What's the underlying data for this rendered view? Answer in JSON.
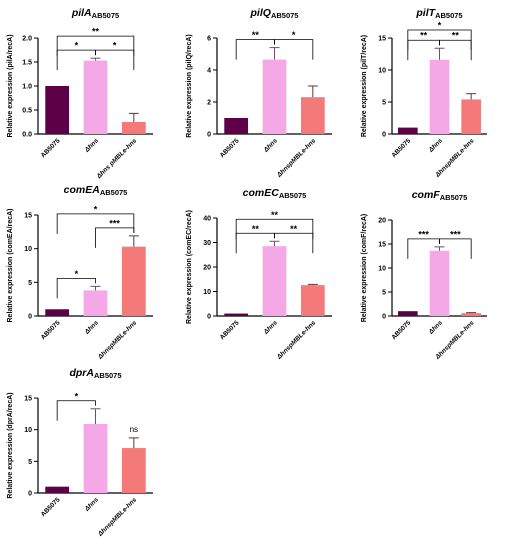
{
  "colors": {
    "AB5075": "#5c0047",
    "hns": "#f4a9e6",
    "complement": "#f47a7a"
  },
  "chart_data": [
    {
      "type": "bar",
      "title": "pilA",
      "subtitle": "AB5075",
      "ylabel": "Relative expression (pilA/recA)",
      "ylim": [
        0,
        2
      ],
      "yticks": [
        "0.0",
        "0.5",
        "1.0",
        "1.5",
        "2.0"
      ],
      "categories": [
        "AB5075",
        "Δhns",
        "Δhns pMBLe-hns"
      ],
      "values": [
        1.0,
        1.53,
        0.25
      ],
      "errors": [
        0,
        0.05,
        0.18
      ],
      "significance": [
        {
          "from": 0,
          "to": 1,
          "label": "*"
        },
        {
          "from": 1,
          "to": 2,
          "label": "*"
        },
        {
          "from": 0,
          "to": 2,
          "label": "**"
        }
      ]
    },
    {
      "type": "bar",
      "title": "pilQ",
      "subtitle": "AB5075",
      "ylabel": "Relative expression (pilQ/recA)",
      "ylim": [
        0,
        6
      ],
      "yticks": [
        "0",
        "2",
        "4",
        "6"
      ],
      "categories": [
        "AB5075",
        "Δhns",
        "ΔhnspMBLe-hns"
      ],
      "values": [
        1.0,
        4.65,
        2.3
      ],
      "errors": [
        0,
        0.75,
        0.7
      ],
      "significance": [
        {
          "from": 0,
          "to": 1,
          "label": "**"
        },
        {
          "from": 1,
          "to": 2,
          "label": "*"
        }
      ]
    },
    {
      "type": "bar",
      "title": "pilT",
      "subtitle": "AB5075",
      "ylabel": "Relative expression (pilT/recA)",
      "ylim": [
        0,
        15
      ],
      "yticks": [
        "0",
        "5",
        "10",
        "15"
      ],
      "categories": [
        "AB5075",
        "Δhns",
        "ΔhnspMBLe-hns"
      ],
      "values": [
        1.0,
        11.6,
        5.4
      ],
      "errors": [
        0,
        1.8,
        0.9
      ],
      "significance": [
        {
          "from": 0,
          "to": 1,
          "label": "**"
        },
        {
          "from": 1,
          "to": 2,
          "label": "**"
        },
        {
          "from": 0,
          "to": 2,
          "label": "*"
        }
      ]
    },
    {
      "type": "bar",
      "title": "comEA",
      "subtitle": "AB5075",
      "ylabel": "Relative expression (comEA/recA)",
      "ylim": [
        0,
        15
      ],
      "yticks": [
        "0",
        "5",
        "10",
        "15"
      ],
      "categories": [
        "AB5075",
        "Δhns",
        "ΔhnspMBLe-hns"
      ],
      "values": [
        1.0,
        3.8,
        10.3
      ],
      "errors": [
        0,
        0.6,
        1.6
      ],
      "significance": [
        {
          "from": 0,
          "to": 1,
          "label": "*"
        },
        {
          "from": 0,
          "to": 2,
          "label": "*"
        },
        {
          "from": 1,
          "to": 2,
          "label": "***"
        }
      ]
    },
    {
      "type": "bar",
      "title": "comEC",
      "subtitle": "AB5075",
      "ylabel": "Relative expression (comEC/recA)",
      "ylim": [
        0,
        40
      ],
      "yticks": [
        "0",
        "10",
        "20",
        "30",
        "40"
      ],
      "categories": [
        "AB5075",
        "Δhns",
        "ΔhnspMBLe-hns"
      ],
      "values": [
        1.0,
        28.5,
        12.6
      ],
      "errors": [
        0,
        2.0,
        0.3
      ],
      "significance": [
        {
          "from": 0,
          "to": 1,
          "label": "**"
        },
        {
          "from": 1,
          "to": 2,
          "label": "**"
        },
        {
          "from": 0,
          "to": 2,
          "label": "**"
        }
      ]
    },
    {
      "type": "bar",
      "title": "comF",
      "subtitle": "AB5075",
      "ylabel": "Relative expression (comF/recA)",
      "ylim": [
        0,
        20
      ],
      "yticks": [
        "0",
        "5",
        "10",
        "15",
        "20"
      ],
      "categories": [
        "AB5075",
        "Δhns",
        "ΔhnspMBLe-hns"
      ],
      "values": [
        1.0,
        13.6,
        0.6
      ],
      "errors": [
        0,
        0.8,
        0.1
      ],
      "significance": [
        {
          "from": 0,
          "to": 1,
          "label": "***"
        },
        {
          "from": 1,
          "to": 2,
          "label": "***"
        }
      ]
    },
    {
      "type": "bar",
      "title": "dprA",
      "subtitle": "AB5075",
      "ylabel": "Relative expression (dprA/recA)",
      "ylim": [
        0,
        15
      ],
      "yticks": [
        "0",
        "5",
        "10",
        "15"
      ],
      "categories": [
        "AB5075",
        "Δhns",
        "ΔhnspMBLe-hns"
      ],
      "values": [
        1.0,
        10.9,
        7.1
      ],
      "errors": [
        0,
        2.4,
        1.6
      ],
      "significance": [
        {
          "from": 0,
          "to": 1,
          "label": "*"
        },
        {
          "from": 2,
          "to": 2,
          "label": "ns"
        }
      ]
    }
  ]
}
